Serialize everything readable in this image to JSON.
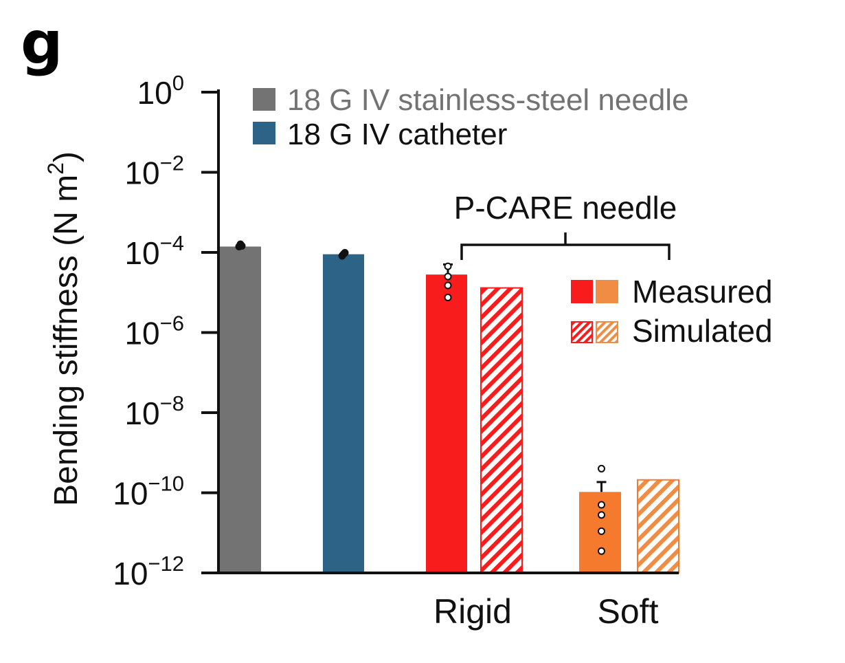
{
  "panel_label": "g",
  "chart_data": {
    "type": "bar",
    "ylabel": "Bending stiffness (N m",
    "ylabel_sup": "2",
    "ylabel_end": ")",
    "yscale": "log",
    "ylim": [
      1e-12,
      1
    ],
    "yticks": [
      {
        "base": "10",
        "exp": "0",
        "value": 1
      },
      {
        "base": "10",
        "exp": "−2",
        "value": 0.01
      },
      {
        "base": "10",
        "exp": "−4",
        "value": 0.0001
      },
      {
        "base": "10",
        "exp": "−6",
        "value": 1e-06
      },
      {
        "base": "10",
        "exp": "−8",
        "value": 1e-08
      },
      {
        "base": "10",
        "exp": "−10",
        "value": 1e-10
      },
      {
        "base": "10",
        "exp": "−12",
        "value": 1e-12
      }
    ],
    "categories": [
      "",
      "",
      "Rigid",
      "Soft"
    ],
    "bars": [
      {
        "value": 0.00014,
        "color": "#737373",
        "pattern": "solid",
        "points": [
          0.00014,
          0.00016,
          0.000145
        ]
      },
      {
        "value": 9e-05,
        "color": "#2e6388",
        "pattern": "solid",
        "points": [
          8.2e-05,
          9e-05,
          9.8e-05
        ]
      },
      {
        "value": 2.8e-05,
        "color": "#f81c1c",
        "pattern": "solid",
        "error": 2.2e-05,
        "points": [
          4.5e-05,
          2.5e-05,
          1.5e-05,
          7.5e-06
        ]
      },
      {
        "value": 1.3e-05,
        "color": "#f81c1c",
        "pattern": "hatch"
      },
      {
        "value": 1.05e-10,
        "color": "#f67a2e",
        "pattern": "solid",
        "error": 8e-11,
        "points": [
          4e-10,
          5e-11,
          2.8e-11,
          1.1e-11,
          3.5e-12
        ]
      },
      {
        "value": 2.1e-10,
        "color": "#f67a2e",
        "pattern": "hatch"
      }
    ],
    "legend": [
      {
        "label": "18 G IV stainless-steel needle",
        "color": "#737373",
        "text_color": "#737373"
      },
      {
        "label": "18 G IV catheter",
        "color": "#2e6388",
        "text_color": "#111111"
      }
    ],
    "legend_pattern": [
      {
        "label": "Measured",
        "pattern": "solid",
        "colors": [
          "#f81c1c",
          "#f08d45"
        ]
      },
      {
        "label": "Simulated",
        "pattern": "hatch",
        "colors": [
          "#f81c1c",
          "#f08d45"
        ]
      }
    ],
    "bracket_label": "P-CARE needle",
    "grid": false
  }
}
